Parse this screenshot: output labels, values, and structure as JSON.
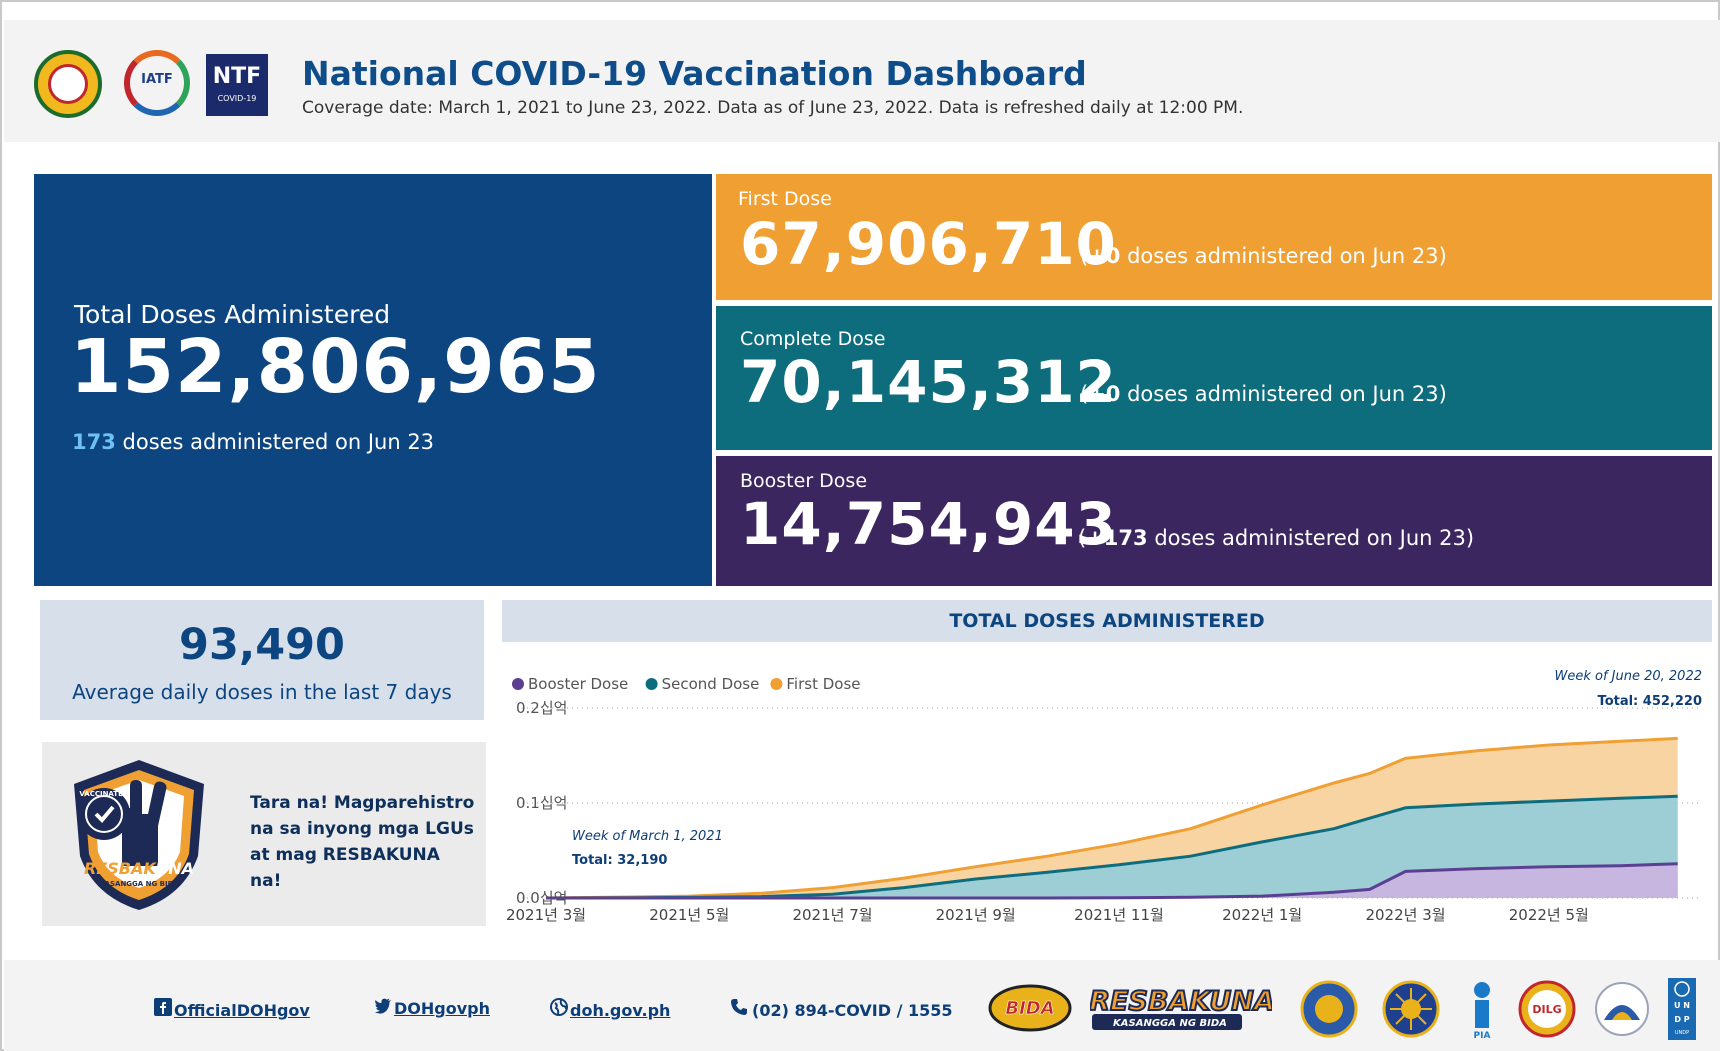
{
  "header": {
    "title": "National COVID-19 Vaccination Dashboard",
    "subtitle": "Coverage date: March 1, 2021 to June 23, 2022. Data as of June 23, 2022. Data is refreshed daily at 12:00 PM.",
    "logos": {
      "iatf": "IATF",
      "ntf_big": "NTF",
      "ntf_small": "COVID-19"
    }
  },
  "total": {
    "label": "Total Doses Administered",
    "value": "152,806,965",
    "daily_count": "173",
    "daily_text": " doses administered on Jun 23"
  },
  "first_dose": {
    "label": "First Dose",
    "value": "67,906,710",
    "note_open": "(",
    "note_delta": "+0",
    "note_text": " doses administered on Jun 23)"
  },
  "complete_dose": {
    "label": "Complete Dose",
    "value": "70,145,312",
    "note_open": "(",
    "note_delta": "+0",
    "note_text": " doses administered on Jun 23)"
  },
  "booster_dose": {
    "label": "Booster Dose",
    "value": "14,754,943",
    "note_open": "(",
    "note_delta": "+173",
    "note_text": " doses administered on Jun 23)"
  },
  "average": {
    "value": "93,490",
    "label": "Average daily doses in the last 7 days"
  },
  "promo": {
    "text": "Tara na! Magparehistro na sa inyong mga LGUs at mag RESBAKUNA na!",
    "badge_word1": "RESBAK",
    "badge_word2": "UNA",
    "badge_sub": "KASANGGA NG BIDA",
    "badge_ring": "VACCINATED"
  },
  "chart_data": {
    "type": "area",
    "title": "TOTAL DOSES ADMINISTERED",
    "stacked": false,
    "legend": [
      "Booster Dose",
      "Second Dose",
      "First Dose"
    ],
    "y_ticks": [
      "0.0십억",
      "0.1십억",
      "0.2십억"
    ],
    "ylim": [
      0,
      200000000
    ],
    "x_ticks": [
      "2021년 3월",
      "2021년 5월",
      "2021년 7월",
      "2021년 9월",
      "2021년 11월",
      "2022년 1월",
      "2022년 3월",
      "2022년 5월"
    ],
    "x_months": [
      0,
      2,
      4,
      6,
      8,
      10,
      12,
      14
    ],
    "x_range": [
      0,
      16
    ],
    "series": [
      {
        "name": "First Dose",
        "color": "#f0a033",
        "fill": "#f8d4a2",
        "x": [
          0,
          1,
          2,
          3,
          4,
          5,
          6,
          7,
          8,
          9,
          10,
          11,
          11.5,
          12,
          13,
          14,
          15,
          15.8
        ],
        "values": [
          0,
          1000000,
          2000000,
          5000000,
          11000000,
          21000000,
          33000000,
          44000000,
          57000000,
          73000000,
          98000000,
          121000000,
          131000000,
          147000000,
          155000000,
          161000000,
          165000000,
          168000000
        ]
      },
      {
        "name": "Second Dose",
        "color": "#0e6d7d",
        "fill": "#9dcdd5",
        "x": [
          0,
          1,
          2,
          3,
          4,
          5,
          6,
          7,
          8,
          9,
          10,
          11,
          11.5,
          12,
          13,
          14,
          15,
          15.8
        ],
        "values": [
          0,
          200000,
          600000,
          1500000,
          4000000,
          11000000,
          20000000,
          27000000,
          35000000,
          44000000,
          59000000,
          73000000,
          84000000,
          95000000,
          99000000,
          102000000,
          105000000,
          107000000
        ]
      },
      {
        "name": "Booster Dose",
        "color": "#5b3f93",
        "fill": "#c7b6df",
        "x": [
          0,
          1,
          2,
          3,
          4,
          5,
          6,
          7,
          8,
          9,
          10,
          11,
          11.5,
          12,
          13,
          14,
          15,
          15.8
        ],
        "values": [
          0,
          0,
          0,
          0,
          0,
          0,
          0,
          0,
          200000,
          800000,
          2000000,
          6000000,
          9000000,
          28000000,
          31000000,
          33000000,
          34000000,
          36000000
        ]
      }
    ],
    "annotations": [
      {
        "caption": "Week of March 1, 2021",
        "total": "Total: 32,190"
      },
      {
        "caption": "Week of June 20, 2022",
        "total": "Total: 452,220"
      }
    ]
  },
  "footer": {
    "facebook": "OfficialDOHgov",
    "twitter": "DOHgovph",
    "website": "doh.gov.ph",
    "phone": "(02) 894-COVID / 1555",
    "logo_bida": "BIDA",
    "logo_resbakuna": "RESBAKUNA",
    "logo_resbakuna_sub": "KASANGGA NG BIDA",
    "logo_pia": "PIA",
    "logo_dilg": "DILG",
    "logo_undp": "UNDP"
  },
  "colors": {
    "navy": "#0d4580",
    "orange": "#f0a033",
    "teal": "#0e6d7d",
    "purple": "#3b2660"
  }
}
